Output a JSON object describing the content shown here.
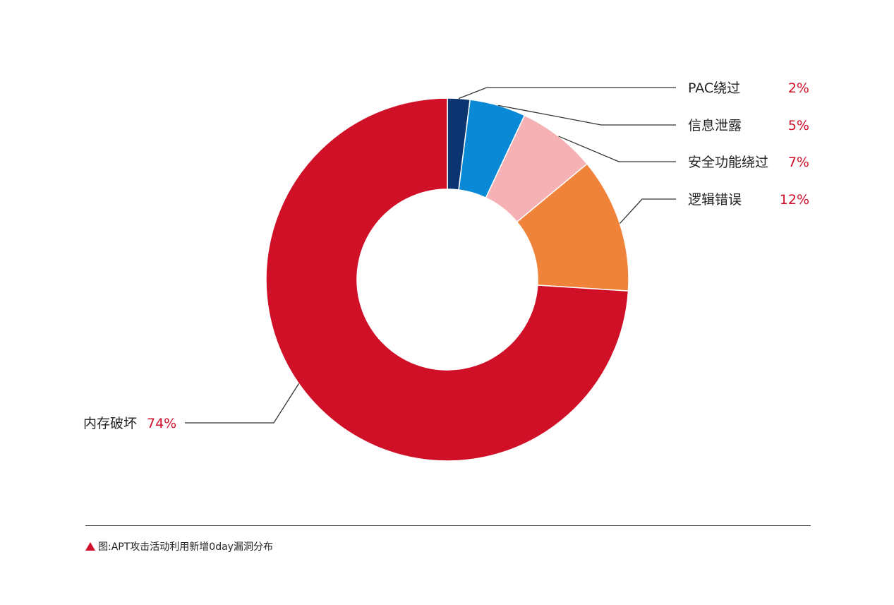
{
  "chart_data": {
    "type": "pie",
    "donut": true,
    "unit": "%",
    "slices": [
      {
        "name": "PAC绕过",
        "value": 2,
        "value_label": "2%",
        "color": "#0b3470"
      },
      {
        "name": "信息泄露",
        "value": 5,
        "value_label": "5%",
        "color": "#0a8ad6"
      },
      {
        "name": "安全功能绕过",
        "value": 7,
        "value_label": "7%",
        "color": "#f5b1b3"
      },
      {
        "name": "逻辑错误",
        "value": 12,
        "value_label": "12%",
        "color": "#ef833a"
      },
      {
        "name": "内存破坏",
        "value": 74,
        "value_label": "74%",
        "color": "#cf1027"
      }
    ],
    "legend": "callouts",
    "value_color": "#d0102a"
  },
  "caption": {
    "text": "图:APT攻击活动利用新增0day漏洞分布",
    "marker_icon": "red-triangle-icon"
  }
}
